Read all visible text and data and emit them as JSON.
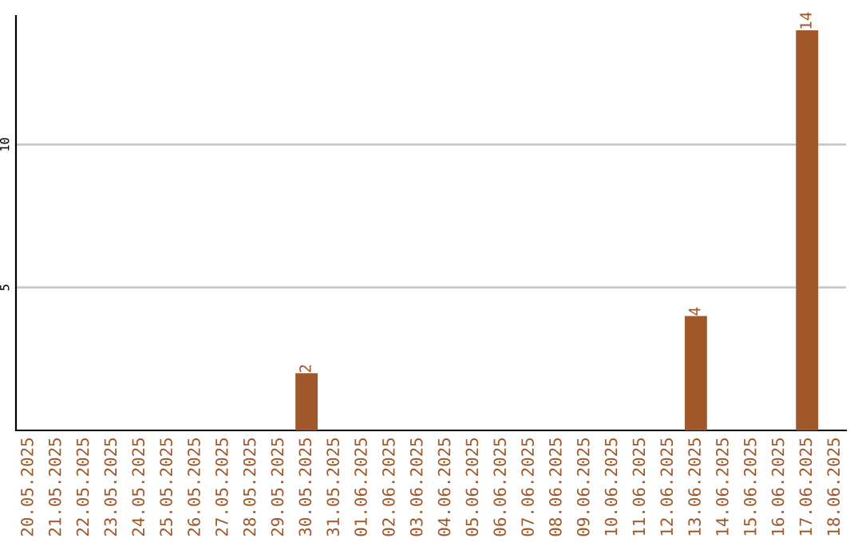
{
  "chart_data": {
    "type": "bar",
    "categories": [
      "20.05.2025",
      "21.05.2025",
      "22.05.2025",
      "23.05.2025",
      "24.05.2025",
      "25.05.2025",
      "26.05.2025",
      "27.05.2025",
      "28.05.2025",
      "29.05.2025",
      "30.05.2025",
      "31.05.2025",
      "01.06.2025",
      "02.06.2025",
      "03.06.2025",
      "04.06.2025",
      "05.06.2025",
      "06.06.2025",
      "07.06.2025",
      "08.06.2025",
      "09.06.2025",
      "10.06.2025",
      "11.06.2025",
      "12.06.2025",
      "13.06.2025",
      "14.06.2025",
      "15.06.2025",
      "16.06.2025",
      "17.06.2025",
      "18.06.2025"
    ],
    "values": [
      0,
      0,
      0,
      0,
      0,
      0,
      0,
      0,
      0,
      0,
      2,
      0,
      0,
      0,
      0,
      0,
      0,
      0,
      0,
      0,
      0,
      0,
      0,
      0,
      4,
      0,
      0,
      0,
      14,
      0
    ],
    "value_labels": [
      null,
      null,
      null,
      null,
      null,
      null,
      null,
      null,
      null,
      null,
      "2",
      null,
      null,
      null,
      null,
      null,
      null,
      null,
      null,
      null,
      null,
      null,
      null,
      null,
      "4",
      null,
      null,
      null,
      "14",
      null
    ],
    "color": "#a0582a",
    "ylim": [
      0,
      14.5
    ],
    "yticks": [
      5,
      10
    ],
    "grid": "y"
  }
}
